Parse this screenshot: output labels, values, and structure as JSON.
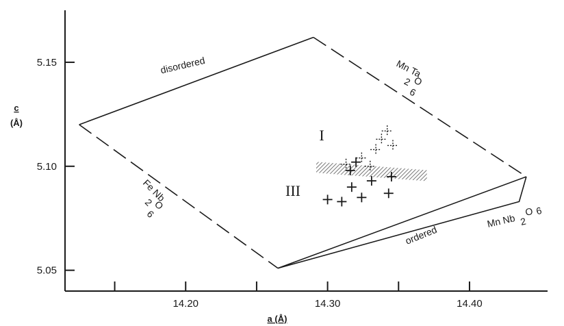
{
  "chart_data": {
    "type": "scatter",
    "xlabel": "a (Å)",
    "ylabel_top": "c",
    "ylabel_unit": "(Å)",
    "xlim": [
      14.115,
      14.455
    ],
    "ylim": [
      5.04,
      5.175
    ],
    "xticks": [
      14.15,
      14.2,
      14.25,
      14.3,
      14.35,
      14.4
    ],
    "xtick_labels": [
      "",
      "14.20",
      "",
      "14.30",
      "",
      "14.40"
    ],
    "yticks": [
      5.05,
      5.1,
      5.15
    ],
    "ytick_labels": [
      "5.05",
      "5.10",
      "5.15"
    ],
    "grid": false,
    "boundary": {
      "disordered_edge": [
        [
          14.125,
          5.12
        ],
        [
          14.29,
          5.162
        ]
      ],
      "mnta_edge": [
        [
          14.29,
          5.162
        ],
        [
          14.44,
          5.095
        ]
      ],
      "fenb_edge": [
        [
          14.125,
          5.12
        ],
        [
          14.265,
          5.051
        ]
      ],
      "lower_edge": [
        [
          14.265,
          5.051
        ],
        [
          14.44,
          5.095
        ]
      ],
      "ordered_edge": [
        [
          14.265,
          5.051
        ],
        [
          14.435,
          5.083
        ],
        [
          14.44,
          5.095
        ]
      ]
    },
    "series": [
      {
        "style": "solid-cross",
        "points": [
          {
            "x": 14.3,
            "y": 5.084
          },
          {
            "x": 14.31,
            "y": 5.083
          },
          {
            "x": 14.324,
            "y": 5.085
          },
          {
            "x": 14.317,
            "y": 5.09
          },
          {
            "x": 14.331,
            "y": 5.093
          },
          {
            "x": 14.343,
            "y": 5.087
          },
          {
            "x": 14.345,
            "y": 5.095
          },
          {
            "x": 14.316,
            "y": 5.098
          },
          {
            "x": 14.32,
            "y": 5.102
          }
        ]
      },
      {
        "style": "dotted-cross",
        "points": [
          {
            "x": 14.324,
            "y": 5.104
          },
          {
            "x": 14.334,
            "y": 5.108
          },
          {
            "x": 14.338,
            "y": 5.113
          },
          {
            "x": 14.342,
            "y": 5.117
          },
          {
            "x": 14.346,
            "y": 5.11
          },
          {
            "x": 14.33,
            "y": 5.1
          },
          {
            "x": 14.313,
            "y": 5.101
          }
        ]
      }
    ],
    "hatched_band": [
      [
        14.292,
        5.0995
      ],
      [
        14.37,
        5.0955
      ]
    ],
    "annotations": {
      "disordered": "disordered",
      "ordered": "ordered",
      "mnta_main": "Mn Ta",
      "mnta_sub1": "2",
      "mnta_sub2": "O",
      "mnta_sub3": "6",
      "fenb_main": "Fe Nb",
      "fenb_sub1": "2",
      "fenb_sub2": "O",
      "fenb_sub3": "6",
      "mnnb_main": "Mn Nb",
      "mnnb_sub1": "2",
      "mnnb_sub2": "O",
      "mnnb_sub3": "6",
      "region_1": "I",
      "region_3": "III"
    }
  }
}
